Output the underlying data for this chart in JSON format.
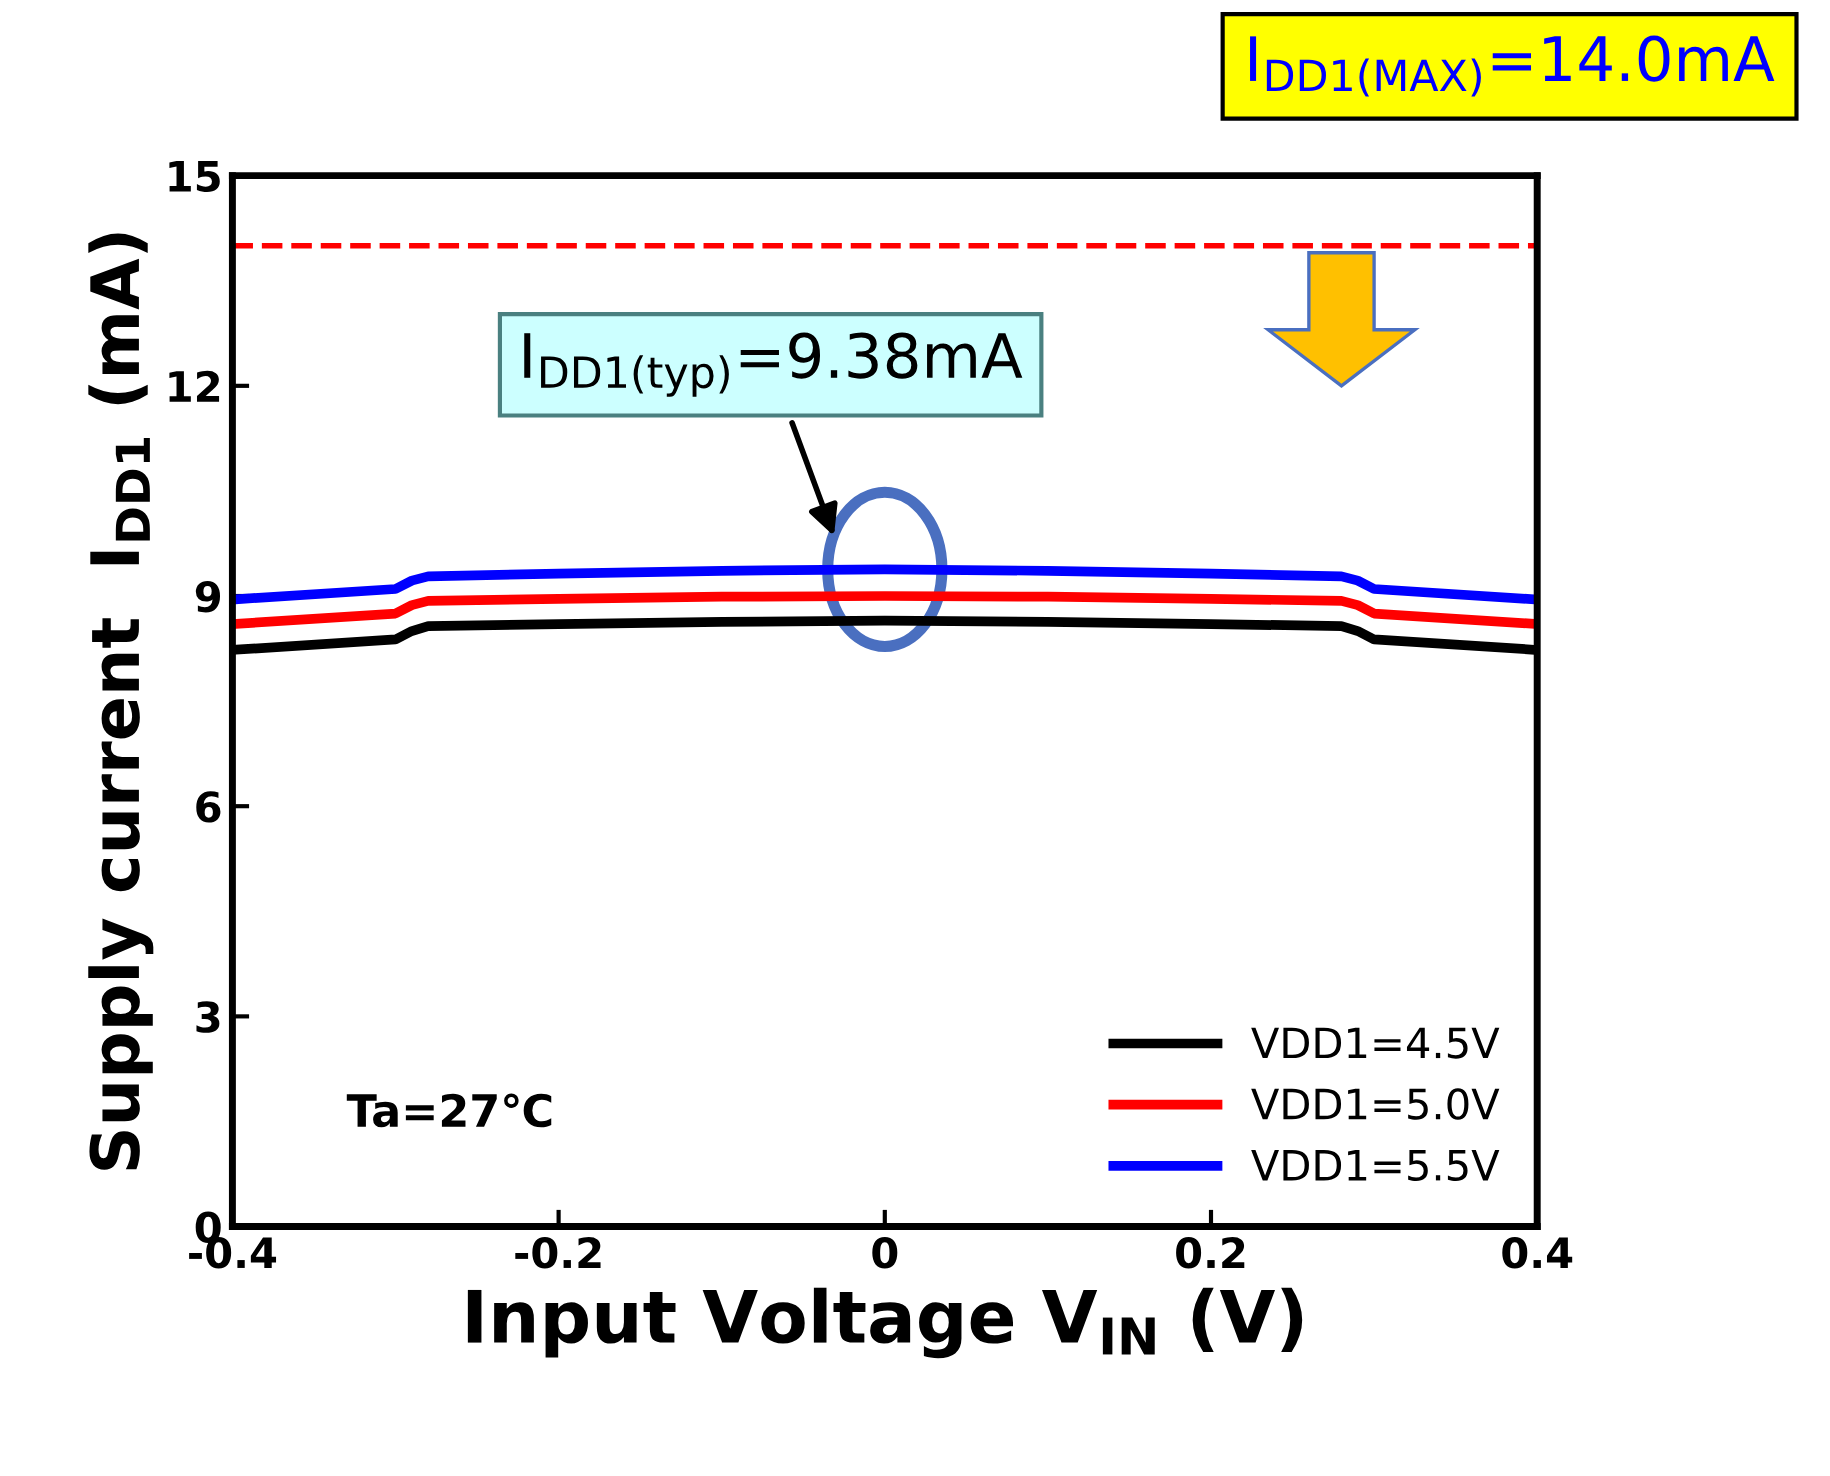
{
  "chart_data": {
    "type": "line",
    "xlabel": "Input Voltage V$_{IN}$ (V)",
    "ylabel": "Supply current  I$_{DD1}$ (mA)",
    "x": [
      -0.4,
      -0.3,
      -0.29,
      -0.28,
      -0.2,
      -0.1,
      0,
      0.1,
      0.2,
      0.28,
      0.29,
      0.3,
      0.4
    ],
    "series": [
      {
        "name": "VDD1=4.5V",
        "color": "#000000",
        "values": [
          8.23,
          8.38,
          8.5,
          8.57,
          8.6,
          8.63,
          8.65,
          8.63,
          8.6,
          8.57,
          8.5,
          8.38,
          8.23
        ]
      },
      {
        "name": "VDD1=5.0V",
        "color": "#ff0000",
        "values": [
          8.6,
          8.75,
          8.87,
          8.93,
          8.96,
          8.99,
          9.0,
          8.99,
          8.96,
          8.93,
          8.87,
          8.75,
          8.6
        ]
      },
      {
        "name": "VDD1=5.5V",
        "color": "#0000ff",
        "values": [
          8.95,
          9.1,
          9.22,
          9.28,
          9.32,
          9.36,
          9.38,
          9.36,
          9.32,
          9.28,
          9.22,
          9.1,
          8.95
        ]
      }
    ],
    "xlim": [
      -0.4,
      0.4
    ],
    "xticks": [
      -0.4,
      -0.2,
      0,
      0.2,
      0.4
    ],
    "ylim": [
      0,
      15
    ],
    "yticks": [
      0,
      3,
      6,
      9,
      12,
      15
    ],
    "ref_lines": [
      {
        "axis": "y",
        "value": 14.0,
        "label": "I$_{DD1(MAX)}$=14.0mA",
        "color": "#ff0000",
        "line_style": "dashed"
      }
    ],
    "annotations": [
      {
        "text": "I$_{DD1(typ)}$=9.38mA",
        "x": 0,
        "y": 9.38
      },
      "Ta=27℃"
    ],
    "legend": "bottom right",
    "grid": false,
    "marker": "none",
    "line_style": "solid"
  }
}
